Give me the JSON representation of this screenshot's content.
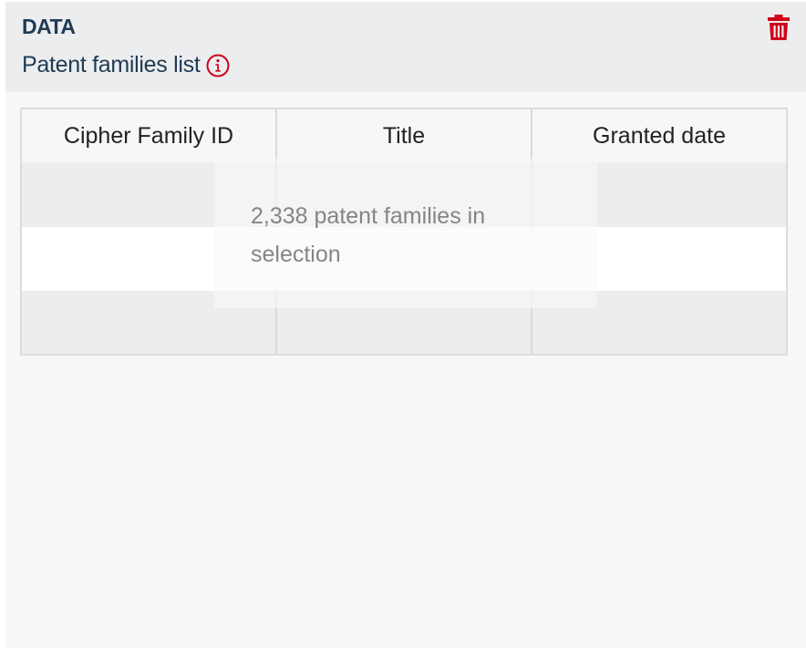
{
  "header": {
    "section_label": "DATA",
    "title": "Patent families list",
    "info_icon": "info-circle-icon",
    "delete_icon": "trash-icon",
    "accent_color": "#d0021b"
  },
  "table": {
    "columns": [
      "Cipher Family ID",
      "Title",
      "Granted date"
    ]
  },
  "overlay": {
    "message": "2,338 patent families in selection"
  }
}
